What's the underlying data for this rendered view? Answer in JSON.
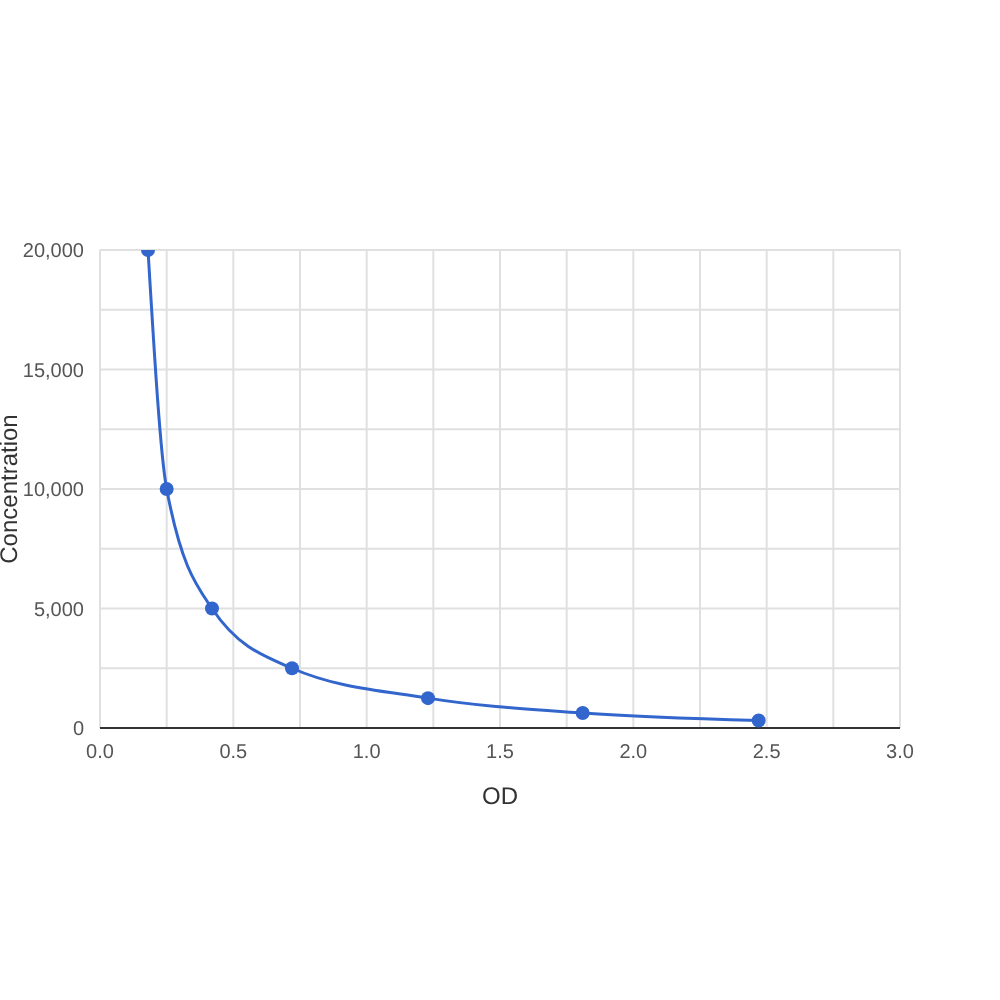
{
  "chart_data": {
    "type": "line",
    "xlabel": "OD",
    "ylabel": "Concentration",
    "x": [
      0.18,
      0.25,
      0.42,
      0.72,
      1.23,
      1.81,
      2.47
    ],
    "series": [
      {
        "color": "#3366cc",
        "values": [
          20000,
          10000,
          5000,
          2500,
          1250,
          625,
          312
        ]
      }
    ],
    "xlim": [
      0,
      3
    ],
    "xticks": [
      {
        "value": 0,
        "label": "0.0"
      },
      {
        "value": 0.25,
        "label": null
      },
      {
        "value": 0.5,
        "label": "0.5"
      },
      {
        "value": 0.75,
        "label": null
      },
      {
        "value": 1,
        "label": "1.0"
      },
      {
        "value": 1.25,
        "label": null
      },
      {
        "value": 1.5,
        "label": "1.5"
      },
      {
        "value": 1.75,
        "label": null
      },
      {
        "value": 2,
        "label": "2.0"
      },
      {
        "value": 2.25,
        "label": null
      },
      {
        "value": 2.5,
        "label": "2.5"
      },
      {
        "value": 2.75,
        "label": null
      },
      {
        "value": 3,
        "label": "3.0"
      }
    ],
    "ylim": [
      0,
      20000
    ],
    "yticks": [
      0,
      {
        "value": 2500,
        "label": null
      },
      {
        "value": 5000,
        "label": "5,000"
      },
      {
        "value": 7500,
        "label": null
      },
      {
        "value": 10000,
        "label": "10,000"
      },
      {
        "value": 12500,
        "label": null
      },
      {
        "value": 15000,
        "label": "15,000"
      },
      {
        "value": 17500,
        "label": null
      },
      {
        "value": 20000,
        "label": "20,000"
      }
    ],
    "grid": true,
    "marker": "circle",
    "line_style": "solid"
  }
}
